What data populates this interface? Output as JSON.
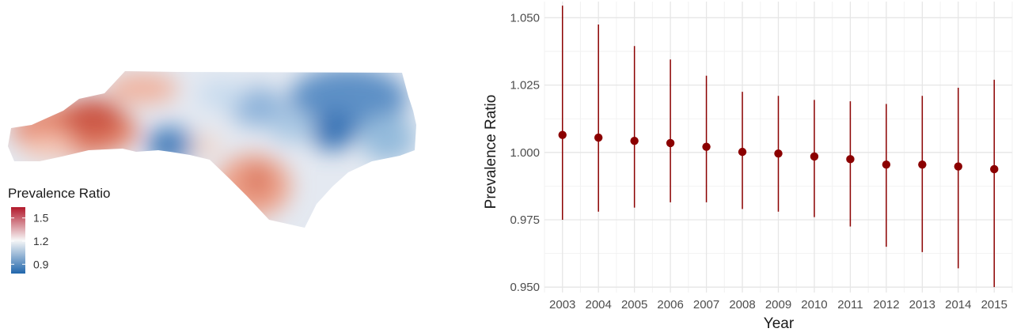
{
  "map": {
    "legend": {
      "title": "Prevalence Ratio",
      "ticks": [
        {
          "label": "1.5",
          "value": 1.5
        },
        {
          "label": "1.2",
          "value": 1.2
        },
        {
          "label": "0.9",
          "value": 0.9
        }
      ],
      "range": [
        0.78,
        1.64
      ],
      "colors": {
        "high": "#b2182b",
        "mid": "#f7f7f7",
        "low": "#2166ac"
      }
    }
  },
  "chart_data": {
    "type": "scatter",
    "title": "",
    "xlabel": "Year",
    "ylabel": "Prevalence Ratio",
    "ylim": [
      0.948,
      1.056
    ],
    "yticks": [
      "0.950",
      "0.975",
      "1.000",
      "1.025",
      "1.050"
    ],
    "grid": true,
    "point_color": "#8b0000",
    "series": [
      {
        "x": [
          "2003",
          "2004",
          "2005",
          "2006",
          "2007",
          "2008",
          "2009",
          "2010",
          "2011",
          "2012",
          "2013",
          "2014",
          "2015"
        ],
        "y": [
          1.0065,
          1.0055,
          1.0043,
          1.0035,
          1.0021,
          1.0002,
          0.9996,
          0.9985,
          0.9975,
          0.9955,
          0.9955,
          0.9948,
          0.9938
        ],
        "lower": [
          0.975,
          0.978,
          0.9795,
          0.9815,
          0.9815,
          0.979,
          0.978,
          0.976,
          0.9725,
          0.965,
          0.963,
          0.957,
          0.95
        ],
        "upper": [
          1.0545,
          1.0475,
          1.0395,
          1.0345,
          1.0285,
          1.0225,
          1.021,
          1.0195,
          1.019,
          1.018,
          1.021,
          1.024,
          1.027
        ]
      }
    ]
  }
}
